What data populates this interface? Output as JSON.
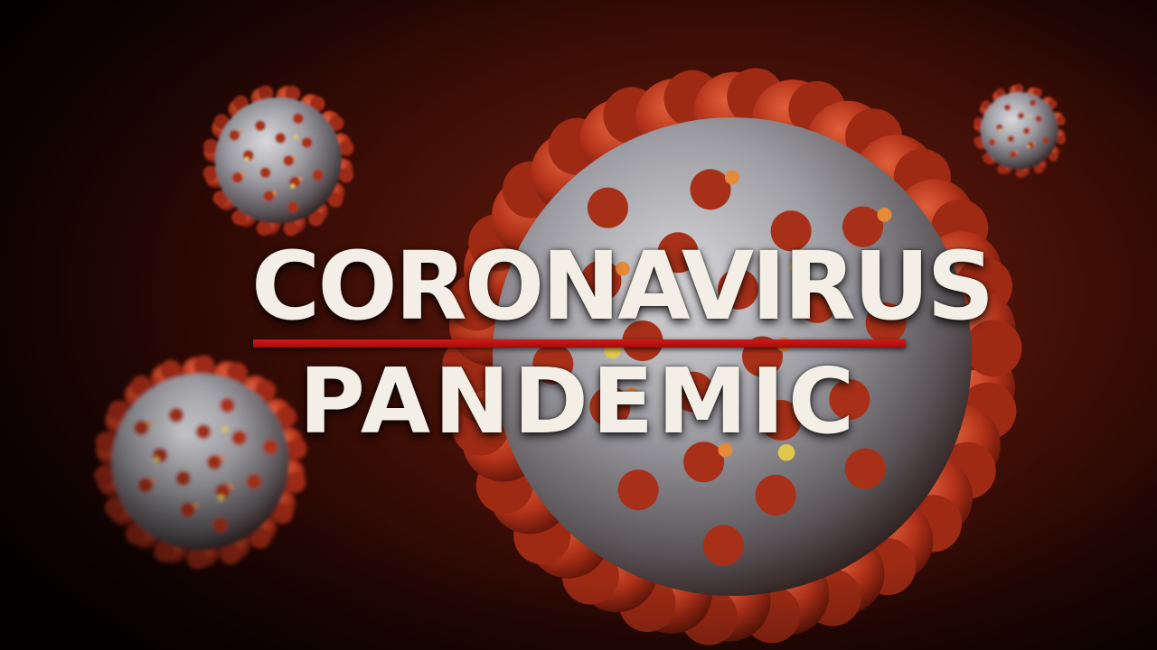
{
  "headline": {
    "line1": "CORONAVIRUS",
    "line2": "PANDEMIC"
  },
  "colors": {
    "background": "#2a0804",
    "spike": "#b8341a",
    "virus_body": "#9a9a9e",
    "headline_text": "#f4efe6",
    "divider": "#d31818"
  },
  "illustration": {
    "subject": "coronavirus-particles",
    "particle_count": 4
  }
}
